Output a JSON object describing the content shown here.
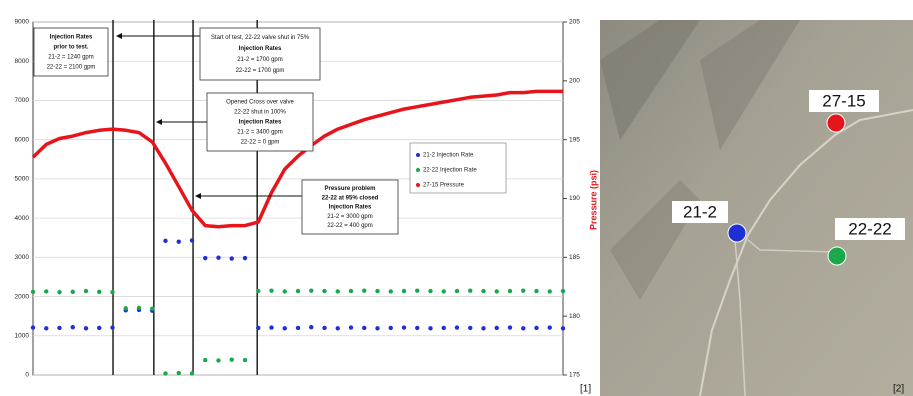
{
  "chart_data": {
    "type": "line",
    "x": [
      0,
      2.5,
      5,
      7.5,
      10,
      12.5,
      15,
      17.5,
      20,
      22.5,
      25,
      27.5,
      30,
      32.5,
      35,
      37.5,
      40,
      42.5,
      45,
      47.5,
      50,
      52.5,
      55,
      57.5,
      60,
      62.5,
      65,
      67.5,
      70,
      72.5,
      75,
      77.5,
      80,
      82.5,
      85,
      87.5,
      90,
      92.5,
      95,
      97.5,
      100
    ],
    "xlim": [
      0,
      100
    ],
    "ylim": [
      0,
      9000
    ],
    "yticks": [
      0,
      1000,
      2000,
      3000,
      4000,
      5000,
      6000,
      7000,
      8000,
      9000
    ],
    "y2lim": [
      175,
      205
    ],
    "y2ticks": [
      175,
      180,
      185,
      190,
      195,
      200,
      205
    ],
    "y2_label": "Pressure (psi)",
    "grid": true,
    "series": [
      {
        "name": "21-2 Injection Rate",
        "color": "#1f2fd6",
        "mode": "markers",
        "values": [
          1210,
          1190,
          1200,
          1220,
          1190,
          1200,
          1210,
          1650,
          1660,
          1640,
          3420,
          3400,
          3430,
          2980,
          2990,
          2970,
          2980,
          1200,
          1210,
          1190,
          1200,
          1220,
          1200,
          1190,
          1210,
          1200,
          1190,
          1200,
          1210,
          1200,
          1190,
          1200,
          1210,
          1200,
          1190,
          1200,
          1210,
          1190,
          1200,
          1210,
          1190
        ]
      },
      {
        "name": "22-22 Injection Rate",
        "color": "#1aa84a",
        "mode": "markers",
        "values": [
          2120,
          2130,
          2110,
          2120,
          2140,
          2120,
          2110,
          1700,
          1710,
          1690,
          40,
          50,
          40,
          380,
          370,
          390,
          380,
          2140,
          2150,
          2130,
          2140,
          2150,
          2140,
          2130,
          2140,
          2150,
          2140,
          2130,
          2140,
          2150,
          2140,
          2130,
          2140,
          2150,
          2140,
          2130,
          2140,
          2150,
          2140,
          2130,
          2140
        ]
      },
      {
        "name": "27-15 Pressure",
        "color": "#e8141b",
        "mode": "lines",
        "axis": "y2",
        "values": [
          193.5,
          194.6,
          195.1,
          195.3,
          195.6,
          195.8,
          195.9,
          195.8,
          195.6,
          194.8,
          193,
          191,
          189,
          187.7,
          187.6,
          187.7,
          187.7,
          188,
          190.5,
          192.5,
          193.6,
          194.5,
          195.3,
          195.9,
          196.3,
          196.7,
          197,
          197.3,
          197.6,
          197.8,
          198,
          198.2,
          198.4,
          198.6,
          198.7,
          198.8,
          199,
          199,
          199.1,
          199.1,
          199.1
        ]
      }
    ],
    "vlines": [
      15.1,
      22.8,
      30.2,
      42.3
    ],
    "annotations": [
      {
        "lines": [
          "Injection Rates",
          "prior to test.",
          "21-2 = 1240 gpm",
          "22-22 = 2100 gpm"
        ]
      },
      {
        "lines": [
          "Start of test, 22-22 valve shut in 75%",
          "Injection Rates",
          "21-2 = 1700 gpm",
          "22-22 = 1700 gpm"
        ]
      },
      {
        "lines": [
          "Opened Cross over valve",
          "22-22 shut in 100%",
          "Injection Rates",
          "21-2 = 3400 gpm",
          "22-22 = 0 gpm"
        ]
      },
      {
        "lines": [
          "Pressure problem",
          "22-22 at 95% closed",
          "Injection Rates",
          "21-2 = 3000 gpm",
          "22-22 = 400 gpm"
        ]
      }
    ]
  },
  "map": {
    "wells": [
      {
        "label": "27-15",
        "color": "#e8141b"
      },
      {
        "label": "21-2",
        "color": "#1f2fd6"
      },
      {
        "label": "22-22",
        "color": "#1aa84a"
      }
    ]
  },
  "captions": [
    "[1]",
    "[2]"
  ]
}
